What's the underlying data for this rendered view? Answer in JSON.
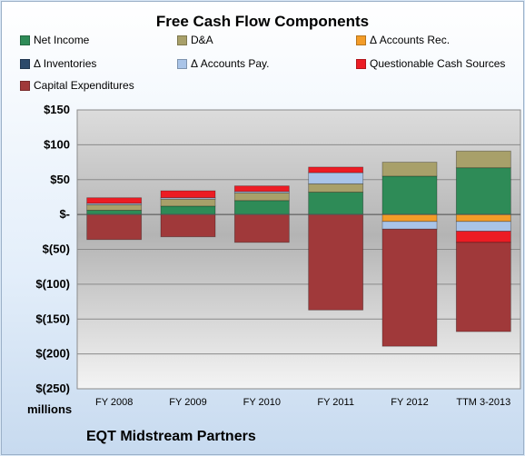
{
  "chart_data": {
    "type": "bar",
    "stacked": true,
    "title": "Free Cash Flow Components",
    "units_label": "millions",
    "footer": "EQT Midstream Partners",
    "categories": [
      "FY 2008",
      "FY 2009",
      "FY 2010",
      "FY 2011",
      "FY 2012",
      "TTM 3-2013"
    ],
    "ylim": [
      -250,
      150
    ],
    "yticks": [
      150,
      100,
      50,
      0,
      -50,
      -100,
      -150,
      -200,
      -250
    ],
    "ytick_labels": [
      "$150",
      "$100",
      "$50",
      "$-",
      "$(50)",
      "$(100)",
      "$(150)",
      "$(200)",
      "$(250)"
    ],
    "grid": true,
    "legend_position": "top",
    "series": [
      {
        "name": "Net Income",
        "color": "#2e8b57",
        "values": [
          6,
          12,
          20,
          32,
          55,
          67
        ]
      },
      {
        "name": "D&A",
        "color": "#a8a06a",
        "values": [
          8,
          10,
          11,
          12,
          20,
          24
        ]
      },
      {
        "name": "Δ Accounts Rec.",
        "color": "#f39c28",
        "values": [
          0,
          0,
          0,
          0,
          -10,
          -10
        ]
      },
      {
        "name": "Δ Inventories",
        "color": "#2c4a6b",
        "values": [
          0,
          0,
          0,
          0,
          0,
          0
        ]
      },
      {
        "name": "Δ Accounts Pay.",
        "color": "#a9c4e8",
        "values": [
          2,
          2,
          2,
          16,
          -11,
          -14
        ]
      },
      {
        "name": "Questionable Cash Sources",
        "color": "#ec1c24",
        "values": [
          8,
          10,
          8,
          8,
          0,
          -16
        ]
      },
      {
        "name": "Capital Expenditures",
        "color": "#a0393a",
        "values": [
          -36,
          -32,
          -40,
          -137,
          -168,
          -128
        ]
      }
    ]
  }
}
